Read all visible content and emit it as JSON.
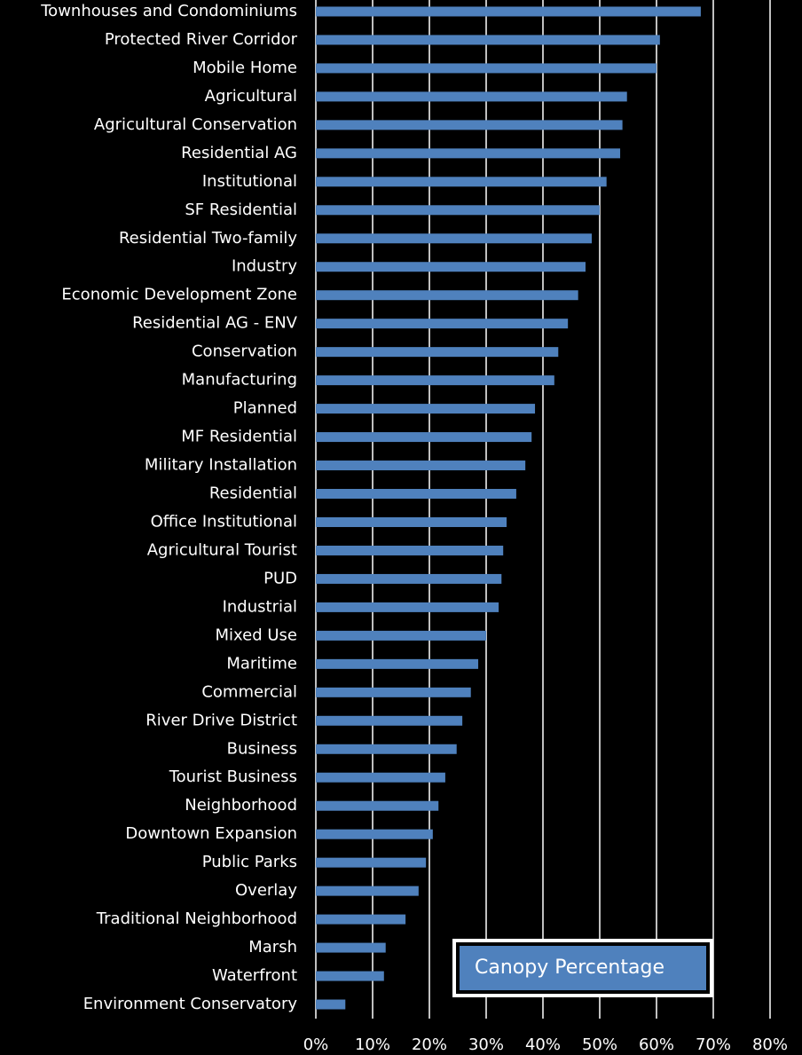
{
  "chart_data": {
    "type": "bar",
    "orientation": "horizontal",
    "categories": [
      "Townhouses and Condominiums",
      "Protected River Corridor",
      "Mobile Home",
      "Agricultural",
      "Agricultural Conservation",
      "Residential AG",
      "Institutional",
      "SF Residential",
      "Residential Two-family",
      "Industry",
      "Economic Development Zone",
      "Residential AG - ENV",
      "Conservation",
      "Manufacturing",
      "Planned",
      "MF Residential",
      "Military Installation",
      "Residential",
      "Office Institutional",
      "Agricultural Tourist",
      "PUD",
      "Industrial",
      "Mixed Use",
      "Maritime",
      "Commercial",
      "River Drive District",
      "Business",
      "Tourist Business",
      "Neighborhood",
      "Downtown Expansion",
      "Public Parks",
      "Overlay",
      "Traditional Neighborhood",
      "Marsh",
      "Waterfront",
      "Environment Conservatory"
    ],
    "series": [
      {
        "name": "Canopy Percentage",
        "color": "#4f81bd",
        "values": [
          67.8,
          60.6,
          60,
          54.8,
          54,
          53.6,
          51.2,
          50,
          48.6,
          47.5,
          46.2,
          44.4,
          42.7,
          42,
          38.6,
          38,
          36.9,
          35.3,
          33.6,
          33,
          32.7,
          32.2,
          30,
          28.6,
          27.3,
          25.8,
          24.8,
          22.8,
          21.6,
          20.6,
          19.4,
          18.1,
          15.8,
          12.3,
          12,
          5.2
        ]
      }
    ],
    "xlim": [
      0,
      80
    ],
    "xticks": [
      {
        "value": 0,
        "label": "0%"
      },
      {
        "value": 10,
        "label": "10%"
      },
      {
        "value": 20,
        "label": "20%"
      },
      {
        "value": 30,
        "label": "30%"
      },
      {
        "value": 40,
        "label": "40%"
      },
      {
        "value": 50,
        "label": "50%"
      },
      {
        "value": 60,
        "label": "60%"
      },
      {
        "value": 70,
        "label": "70%"
      },
      {
        "value": 80,
        "label": "80%"
      }
    ],
    "grid": true,
    "legend": "lower right"
  }
}
